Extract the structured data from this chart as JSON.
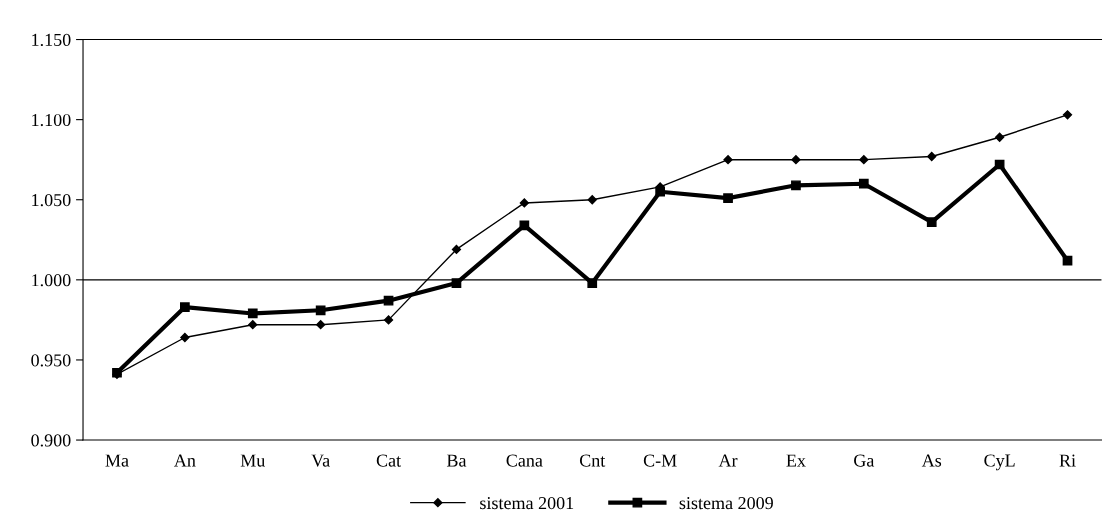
{
  "chart_data": {
    "type": "line",
    "categories": [
      "Ma",
      "An",
      "Mu",
      "Va",
      "Cat",
      "Ba",
      "Cana",
      "Cnt",
      "C-M",
      "Ar",
      "Ex",
      "Ga",
      "As",
      "CyL",
      "Ri"
    ],
    "series": [
      {
        "name": "sistema 2001",
        "color": "#000000",
        "marker": "diamond",
        "values": [
          0.941,
          0.964,
          0.972,
          0.972,
          0.975,
          1.019,
          1.048,
          1.05,
          1.058,
          1.075,
          1.075,
          1.075,
          1.077,
          1.089,
          1.103
        ]
      },
      {
        "name": "sistema 2009",
        "color": "#000000",
        "marker": "square",
        "values": [
          0.942,
          0.983,
          0.979,
          0.981,
          0.987,
          0.998,
          1.034,
          0.998,
          1.055,
          1.051,
          1.059,
          1.06,
          1.036,
          1.072,
          1.012
        ]
      }
    ],
    "ylim": [
      0.9,
      1.15
    ],
    "yticks": [
      {
        "value": 0.9,
        "label": "0.900"
      },
      {
        "value": 0.95,
        "label": "0.950"
      },
      {
        "value": 1.0,
        "label": "1.000"
      },
      {
        "value": 1.05,
        "label": "1.050"
      },
      {
        "value": 1.1,
        "label": "1.100"
      },
      {
        "value": 1.15,
        "label": "1.150"
      }
    ],
    "ref_lines": [
      {
        "axis": "y",
        "value": 1.0,
        "color": "#000000"
      }
    ],
    "grid": false,
    "legend": "bottom",
    "line_style": "solid"
  }
}
